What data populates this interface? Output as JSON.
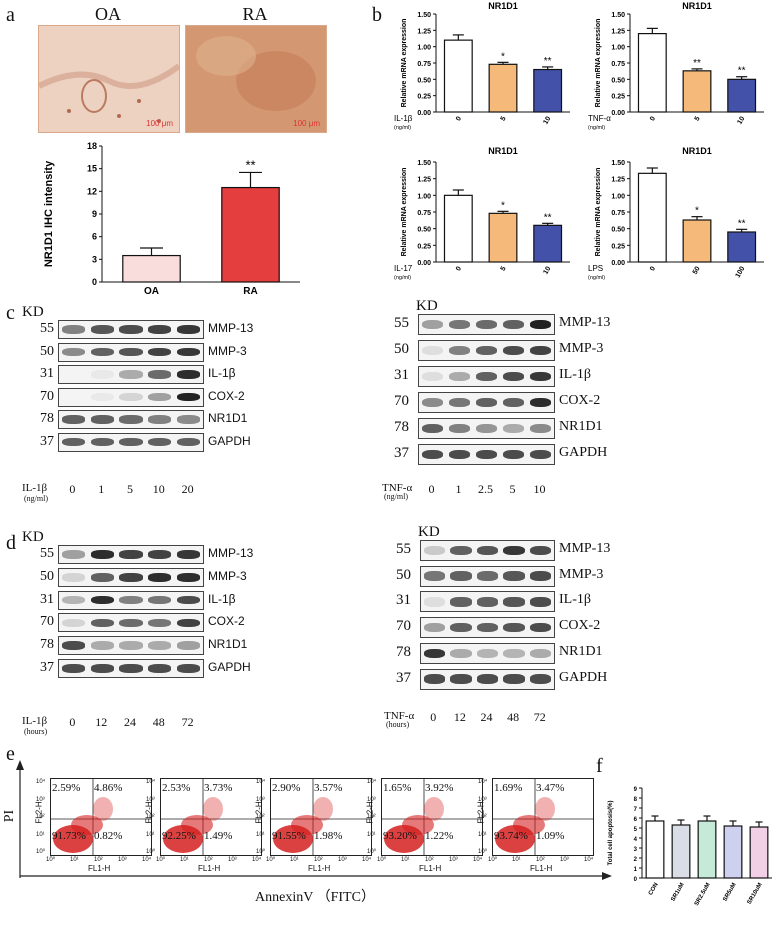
{
  "panels": {
    "a": "a",
    "b": "b",
    "c": "c",
    "d": "d",
    "e": "e",
    "f": "f"
  },
  "micrographs": [
    {
      "label": "OA",
      "scalebar": "100 μm"
    },
    {
      "label": "RA",
      "scalebar": "100 μm"
    }
  ],
  "colors": {
    "oa_bar": "#f9dcdc",
    "ra_bar": "#e53e3e",
    "white": "#ffffff",
    "orange": "#f5b97a",
    "blue": "#4352a8",
    "tissue": "#e4b79a"
  },
  "blot_c_left": {
    "kd": "KD",
    "rows": [
      {
        "kd": "55",
        "name": "MMP-13"
      },
      {
        "kd": "50",
        "name": "MMP-3"
      },
      {
        "kd": "31",
        "name": "IL-1β"
      },
      {
        "kd": "70",
        "name": "COX-2"
      },
      {
        "kd": "78",
        "name": "NR1D1"
      },
      {
        "kd": "37",
        "name": "GAPDH"
      }
    ],
    "treat": "IL-1β",
    "unit": "(ng/ml)",
    "lanes": [
      "0",
      "1",
      "5",
      "10",
      "20"
    ]
  },
  "blot_c_right": {
    "kd": "KD",
    "rows": [
      {
        "kd": "55",
        "name": "MMP-13"
      },
      {
        "kd": "50",
        "name": "MMP-3"
      },
      {
        "kd": "31",
        "name": "IL-1β"
      },
      {
        "kd": "70",
        "name": "COX-2"
      },
      {
        "kd": "78",
        "name": "NR1D1"
      },
      {
        "kd": "37",
        "name": "GAPDH"
      }
    ],
    "treat": "TNF-α",
    "unit": "(ng/ml)",
    "lanes": [
      "0",
      "1",
      "2.5",
      "5",
      "10"
    ]
  },
  "blot_d_left": {
    "kd": "KD",
    "rows": [
      {
        "kd": "55",
        "name": "MMP-13"
      },
      {
        "kd": "50",
        "name": "MMP-3"
      },
      {
        "kd": "31",
        "name": "IL-1β"
      },
      {
        "kd": "70",
        "name": "COX-2"
      },
      {
        "kd": "78",
        "name": "NR1D1"
      },
      {
        "kd": "37",
        "name": "GAPDH"
      }
    ],
    "treat": "IL-1β",
    "unit": "(hours)",
    "lanes": [
      "0",
      "12",
      "24",
      "48",
      "72"
    ]
  },
  "blot_d_right": {
    "kd": "KD",
    "rows": [
      {
        "kd": "55",
        "name": "MMP-13"
      },
      {
        "kd": "50",
        "name": "MMP-3"
      },
      {
        "kd": "31",
        "name": "IL-1β"
      },
      {
        "kd": "70",
        "name": "COX-2"
      },
      {
        "kd": "78",
        "name": "NR1D1"
      },
      {
        "kd": "37",
        "name": "GAPDH"
      }
    ],
    "treat": "TNF-α",
    "unit": "(hours)",
    "lanes": [
      "0",
      "12",
      "24",
      "48",
      "72"
    ]
  },
  "flow": {
    "y_axis": "PI",
    "x_axis": "AnnexinV （FITC）",
    "ylabel": "FL2-H",
    "xlabel": "FL1-H",
    "ticks": [
      "10⁰",
      "10¹",
      "10²",
      "10³",
      "10⁴"
    ],
    "plots": [
      {
        "ul": "2.59%",
        "ur": "4.86%",
        "ll": "91.73%",
        "lr": "0.82%"
      },
      {
        "ul": "2.53%",
        "ur": "3.73%",
        "ll": "92.25%",
        "lr": "1.49%"
      },
      {
        "ul": "2.90%",
        "ur": "3.57%",
        "ll": "91.55%",
        "lr": "1.98%"
      },
      {
        "ul": "1.65%",
        "ur": "3.92%",
        "ll": "93.20%",
        "lr": "1.22%"
      },
      {
        "ul": "1.69%",
        "ur": "3.47%",
        "ll": "93.74%",
        "lr": "1.09%"
      }
    ]
  },
  "chart_data": [
    {
      "type": "bar",
      "categories": [
        "OA",
        "RA"
      ],
      "values": [
        3.5,
        12.5
      ],
      "errors": [
        1.0,
        2.0
      ],
      "significance": [
        "",
        "**"
      ],
      "ylabel": "NR1D1 IHC intensity",
      "ylim": [
        0,
        18
      ],
      "yticks": [
        0,
        3,
        6,
        9,
        12,
        15,
        18
      ],
      "colors": [
        "#f9dcdc",
        "#e53e3e"
      ]
    },
    {
      "type": "bar",
      "title": "NR1D1",
      "categories": [
        "0",
        "5",
        "10"
      ],
      "values": [
        1.1,
        0.73,
        0.65
      ],
      "errors": [
        0.08,
        0.03,
        0.04
      ],
      "significance": [
        "",
        "*",
        "**"
      ],
      "ylabel": "Relative mRNA expression",
      "ylim": [
        0,
        1.5
      ],
      "yticks": [
        0,
        0.25,
        0.5,
        0.75,
        1.0,
        1.25,
        1.5
      ],
      "treatment": "IL-1β",
      "unit": "(ng/ml)"
    },
    {
      "type": "bar",
      "title": "NR1D1",
      "categories": [
        "0",
        "5",
        "10"
      ],
      "values": [
        1.2,
        0.63,
        0.5
      ],
      "errors": [
        0.08,
        0.03,
        0.04
      ],
      "significance": [
        "",
        "**",
        "**"
      ],
      "ylabel": "Relative mRNA expression",
      "ylim": [
        0,
        1.5
      ],
      "yticks": [
        0,
        0.25,
        0.5,
        0.75,
        1.0,
        1.25,
        1.5
      ],
      "treatment": "TNF-α",
      "unit": "(ng/ml)"
    },
    {
      "type": "bar",
      "title": "NR1D1",
      "categories": [
        "0",
        "5",
        "10"
      ],
      "values": [
        1.0,
        0.73,
        0.55
      ],
      "errors": [
        0.08,
        0.03,
        0.03
      ],
      "significance": [
        "",
        "*",
        "**"
      ],
      "ylabel": "Relative mRNA expression",
      "ylim": [
        0,
        1.5
      ],
      "yticks": [
        0,
        0.25,
        0.5,
        0.75,
        1.0,
        1.25,
        1.5
      ],
      "treatment": "IL-17",
      "unit": "(ng/ml)"
    },
    {
      "type": "bar",
      "title": "NR1D1",
      "categories": [
        "0",
        "50",
        "100"
      ],
      "values": [
        1.33,
        0.63,
        0.45
      ],
      "errors": [
        0.08,
        0.05,
        0.04
      ],
      "significance": [
        "",
        "*",
        "**"
      ],
      "ylabel": "Relative mRNA expression",
      "ylim": [
        0,
        1.5
      ],
      "yticks": [
        0,
        0.25,
        0.5,
        0.75,
        1.0,
        1.25,
        1.5
      ],
      "treatment": "LPS",
      "unit": "(ng/ml)"
    },
    {
      "type": "bar",
      "categories": [
        "CON",
        "SR1uM",
        "SR2.5uM",
        "SR5uM",
        "SR10uM"
      ],
      "values": [
        5.7,
        5.3,
        5.7,
        5.2,
        5.1
      ],
      "errors": [
        0.5,
        0.5,
        0.5,
        0.5,
        0.5
      ],
      "ylabel": "Total cell apoptosis(%)",
      "ylim": [
        0,
        9
      ],
      "yticks": [
        0,
        1,
        2,
        3,
        4,
        5,
        6,
        7,
        8,
        9
      ],
      "colors": [
        "#ffffff",
        "#d8dde6",
        "#c5ead8",
        "#cdd0ee",
        "#f1d0e6"
      ]
    }
  ]
}
